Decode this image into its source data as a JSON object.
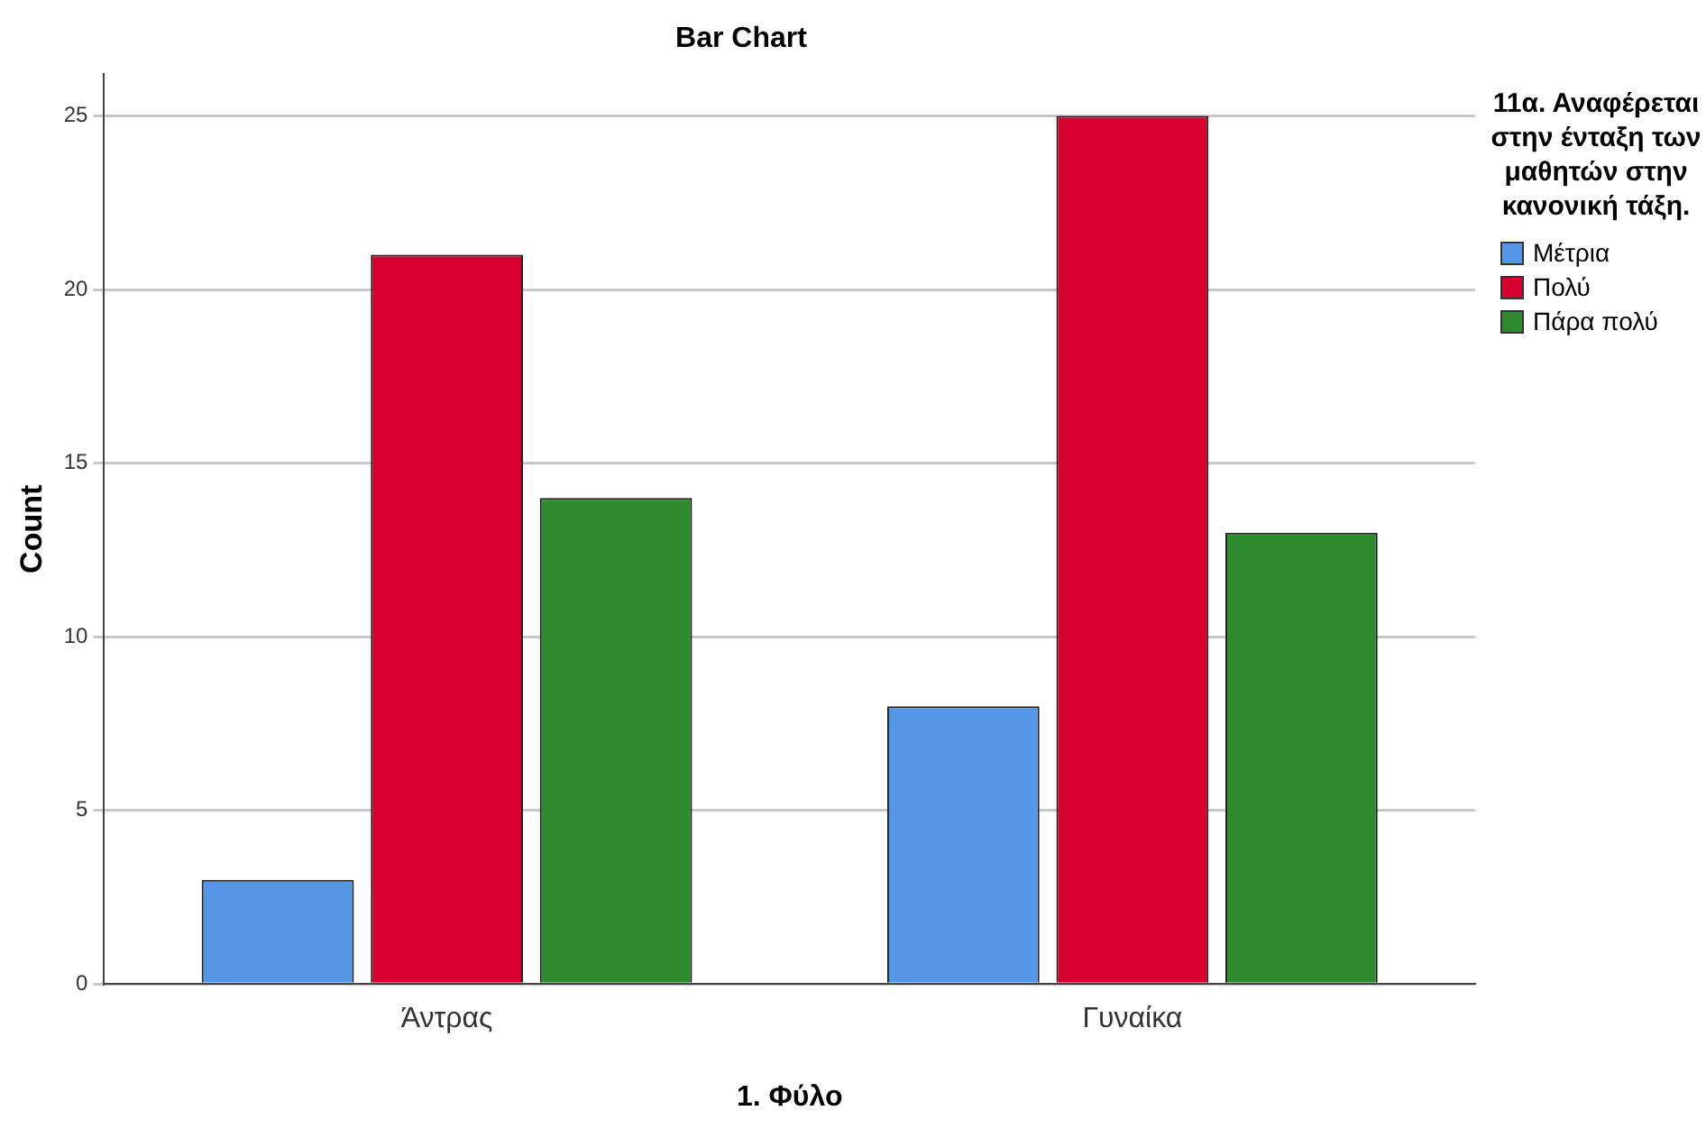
{
  "chart_data": {
    "type": "bar",
    "title": "Bar Chart",
    "xlabel": "1. Φύλο",
    "ylabel": "Count",
    "legend_title": "11α. Αναφέρεται στην ένταξη των μαθητών στην κανονική τάξη.",
    "categories": [
      "Άντρας",
      "Γυναίκα"
    ],
    "series": [
      {
        "name": "Μέτρια",
        "color": "#5596e6",
        "values": [
          3,
          8
        ]
      },
      {
        "name": "Πολύ",
        "color": "#d6002f",
        "values": [
          21,
          25
        ]
      },
      {
        "name": "Πάρα πολύ",
        "color": "#2e8b2e",
        "values": [
          14,
          13
        ]
      }
    ],
    "ylim": [
      0,
      26.2
    ],
    "yticks": [
      0,
      5,
      10,
      15,
      20,
      25
    ],
    "grid": "y",
    "legend": "right"
  }
}
